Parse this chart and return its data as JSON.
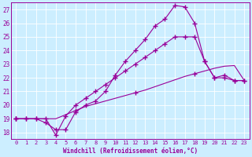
{
  "xlabel": "Windchill (Refroidissement éolien,°C)",
  "bg_color": "#cceeff",
  "line_color": "#990099",
  "xlim": [
    -0.5,
    23.5
  ],
  "ylim": [
    17.5,
    27.5
  ],
  "yticks": [
    18,
    19,
    20,
    21,
    22,
    23,
    24,
    25,
    26,
    27
  ],
  "xticks": [
    0,
    1,
    2,
    3,
    4,
    5,
    6,
    7,
    8,
    9,
    10,
    11,
    12,
    13,
    14,
    15,
    16,
    17,
    18,
    19,
    20,
    21,
    22,
    23
  ],
  "line_top_x": [
    0,
    1,
    2,
    3,
    4,
    5,
    6,
    7,
    8,
    9,
    10,
    11,
    12,
    13,
    14,
    15,
    16,
    17,
    18,
    19,
    20,
    21,
    22,
    23
  ],
  "line_top_y": [
    19,
    19,
    19,
    18.7,
    18.2,
    18.2,
    19.5,
    20.0,
    20.3,
    21.0,
    22.2,
    23.2,
    24.0,
    24.8,
    25.8,
    26.3,
    27.3,
    27.2,
    26.0,
    23.2,
    22.0,
    22.2,
    21.8,
    21.8
  ],
  "line_mid_x": [
    0,
    1,
    2,
    3,
    4,
    5,
    6,
    7,
    8,
    9,
    10,
    11,
    12,
    13,
    14,
    15,
    16,
    17,
    18,
    19,
    20,
    21,
    22,
    23
  ],
  "line_mid_y": [
    19,
    19,
    19,
    19.0,
    17.8,
    19.2,
    20.0,
    20.5,
    21.0,
    21.5,
    22.0,
    22.5,
    23.0,
    23.5,
    24.0,
    24.5,
    25.0,
    25.0,
    25.0,
    23.2,
    22.0,
    22.0,
    21.8,
    21.8
  ],
  "line_bot_x": [
    0,
    1,
    2,
    3,
    4,
    5,
    6,
    7,
    8,
    9,
    10,
    11,
    12,
    13,
    14,
    15,
    16,
    17,
    18,
    19,
    20,
    21,
    22,
    23
  ],
  "line_bot_y": [
    19,
    19,
    19,
    19.0,
    19.0,
    19.3,
    19.6,
    19.9,
    20.1,
    20.3,
    20.5,
    20.7,
    20.9,
    21.1,
    21.35,
    21.6,
    21.85,
    22.1,
    22.3,
    22.5,
    22.7,
    22.85,
    22.9,
    21.8
  ]
}
